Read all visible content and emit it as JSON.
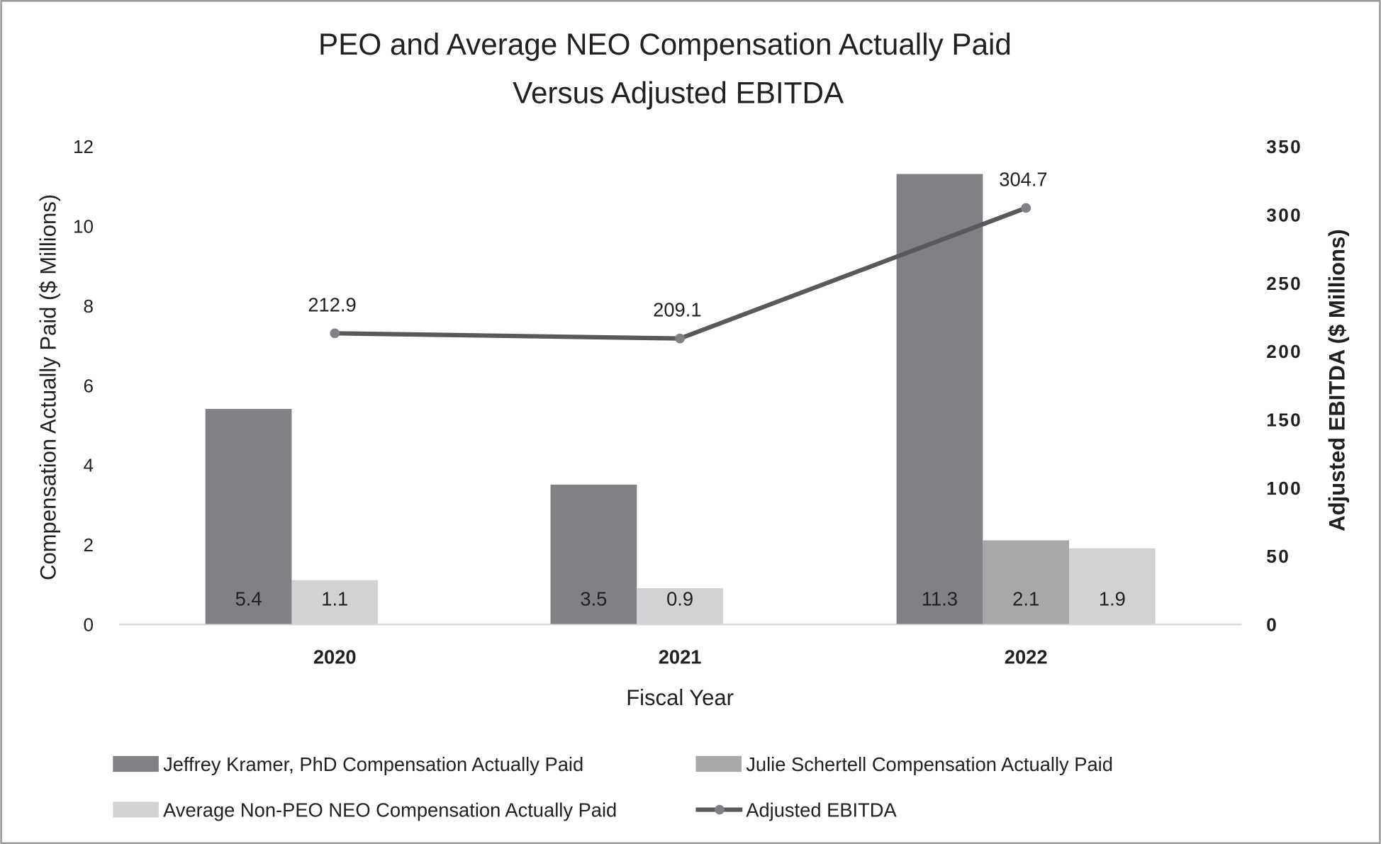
{
  "chart_data": {
    "type": "bar+line",
    "title_lines": [
      "PEO and Average NEO Compensation Actually Paid",
      "Versus Adjusted EBITDA"
    ],
    "xlabel": "Fiscal Year",
    "ylabel": "Compensation Actually Paid ($ Millions)",
    "y2label": "Adjusted EBITDA ($ Millions)",
    "categories": [
      "2020",
      "2021",
      "2022"
    ],
    "ylim": [
      0,
      12
    ],
    "yticks": [
      "0",
      "2",
      "4",
      "6",
      "8",
      "10",
      "12"
    ],
    "y2lim": [
      0,
      350
    ],
    "y2ticks": [
      "0",
      "50",
      "100",
      "150",
      "200",
      "250",
      "300",
      "350"
    ],
    "grid": false,
    "legend_position": "bottom",
    "series": [
      {
        "name": "Jeffrey Kramer, PhD Compensation Actually Paid",
        "type": "bar",
        "axis": "left",
        "color": "#808184",
        "values": [
          5.4,
          3.5,
          11.3
        ],
        "labels": [
          "5.4",
          "3.5",
          "11.3"
        ]
      },
      {
        "name": "Julie Schertell Compensation Actually Paid",
        "type": "bar",
        "axis": "left",
        "color": "#a7a8aa",
        "values": [
          null,
          null,
          2.1
        ],
        "labels": [
          null,
          null,
          "2.1"
        ]
      },
      {
        "name": "Average Non-PEO NEO Compensation Actually Paid",
        "type": "bar",
        "axis": "left",
        "color": "#d1d2d4",
        "values": [
          1.1,
          0.9,
          1.9
        ],
        "labels": [
          "1.1",
          "0.9",
          "1.9"
        ]
      },
      {
        "name": "Adjusted EBITDA",
        "type": "line",
        "axis": "right",
        "color": "#58595b",
        "marker_color": "#808184",
        "values": [
          212.9,
          209.1,
          304.7
        ],
        "labels": [
          "212.9",
          "209.1",
          "304.7"
        ]
      }
    ]
  }
}
